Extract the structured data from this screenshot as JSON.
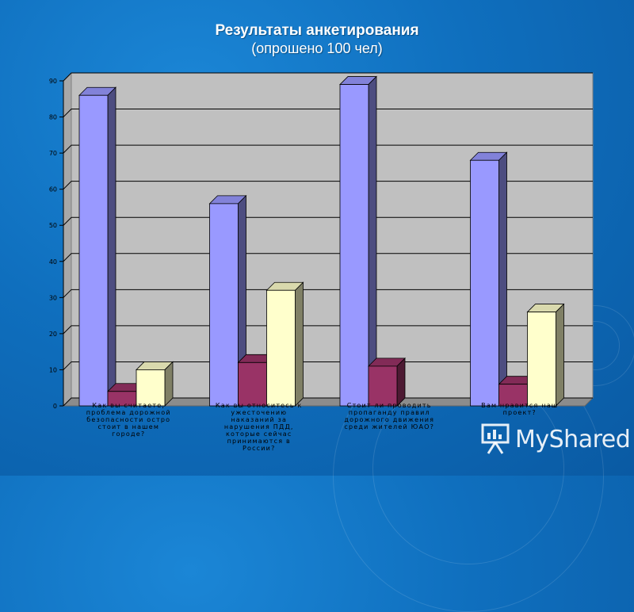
{
  "chart_data": {
    "type": "bar",
    "title": "Результаты анкетирования",
    "subtitle": "(опрошено 100 чел)",
    "categories": [
      [
        "Как вы считаете,",
        "проблема дорожной",
        "безопасности остро",
        "стоит в нашем",
        "городе?"
      ],
      [
        "Как вы относитесь к",
        "ужесточению",
        "наказаний за",
        "нарушения ПДД,",
        "которые сейчас",
        "принимаются в",
        "России?"
      ],
      [
        "Стоит ли проводить",
        "пропаганду правил",
        "дорожного движения",
        "среди жителей ЮАО?"
      ],
      [
        "Вам нравится наш",
        "проект?"
      ]
    ],
    "series": [
      {
        "values": [
          86,
          56,
          89,
          68
        ],
        "color": "#9999ff"
      },
      {
        "values": [
          4,
          12,
          11,
          6
        ],
        "color": "#993366"
      },
      {
        "values": [
          10,
          32,
          0,
          26
        ],
        "color": "#ffffcc"
      }
    ],
    "ylim": [
      0,
      90
    ],
    "yticks": [
      0,
      10,
      20,
      30,
      40,
      50,
      60,
      70,
      80,
      90
    ],
    "grid": true,
    "legend": "none"
  },
  "watermark": {
    "text": "MyShared",
    "icon": "presentation-board-icon"
  }
}
